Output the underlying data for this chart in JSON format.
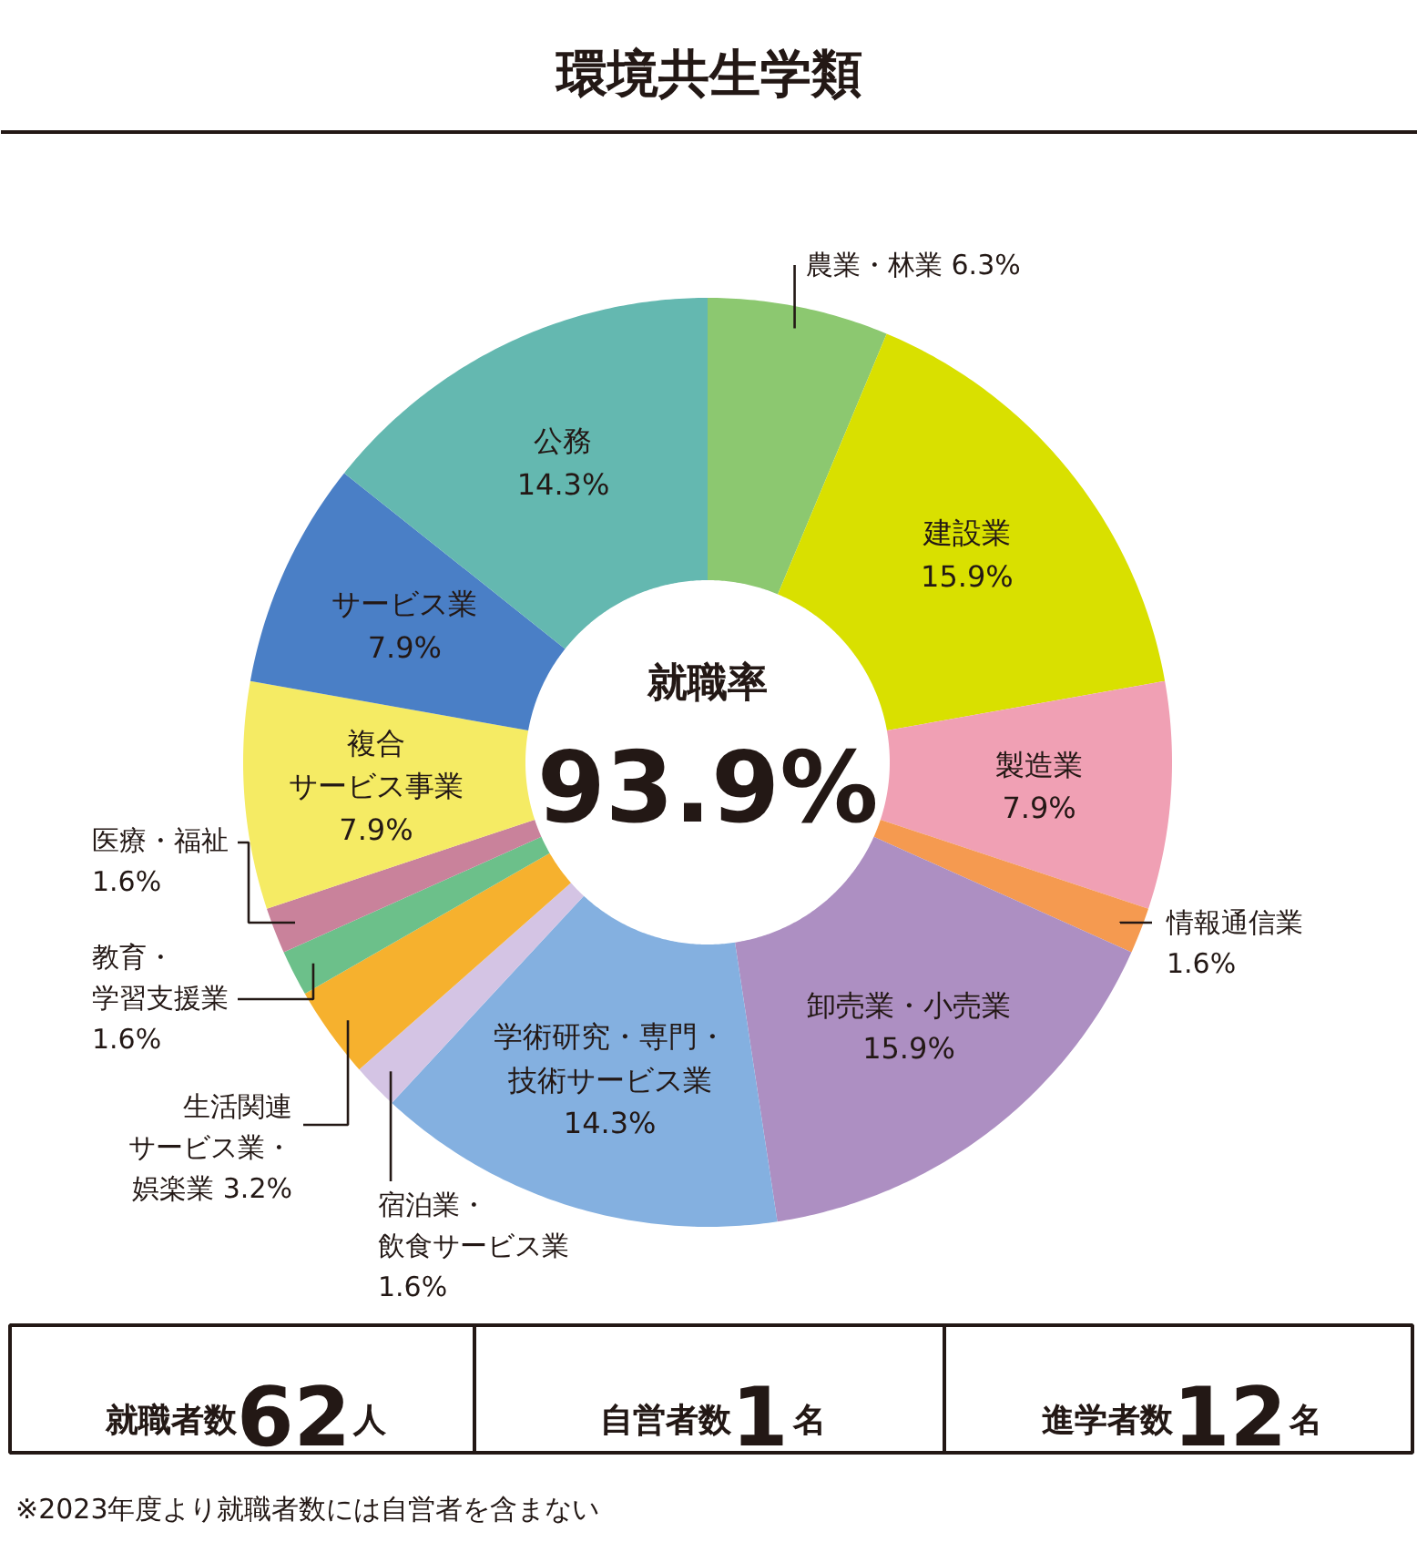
{
  "chart_data": {
    "type": "donut",
    "title": "環境共生学類",
    "categories": [
      "農業・林業",
      "建設業",
      "製造業",
      "情報通信業",
      "卸売業・小売業",
      "学術研究・専門・技術サービス業",
      "宿泊業・飲食サービス業",
      "生活関連サービス業・娯楽業",
      "教育・学習支援業",
      "医療・福祉",
      "複合サービス事業",
      "サービス業",
      "公務"
    ],
    "values": [
      6.3,
      15.9,
      7.9,
      1.6,
      15.9,
      14.3,
      1.6,
      3.2,
      1.6,
      1.6,
      7.9,
      7.9,
      14.3
    ],
    "value_labels": [
      "6.3%",
      "15.9%",
      "7.9%",
      "1.6%",
      "15.9%",
      "14.3%",
      "1.6%",
      "3.2%",
      "1.6%",
      "1.6%",
      "7.9%",
      "7.9%",
      "14.3%"
    ],
    "colors": [
      "#8cc870",
      "#d9e000",
      "#f0a0b4",
      "#f59a50",
      "#ad8fc2",
      "#84b0e0",
      "#d4c4e4",
      "#f6b12e",
      "#6cc08a",
      "#c9829b",
      "#f5eb64",
      "#4a7fc6",
      "#64b8b0"
    ],
    "annotations": [
      "就職率",
      "93.9%",
      "就職者数62人",
      "自営者数1名",
      "進学者数12名",
      "※2023年度より就職者数には自営者を含まない"
    ]
  }
}
